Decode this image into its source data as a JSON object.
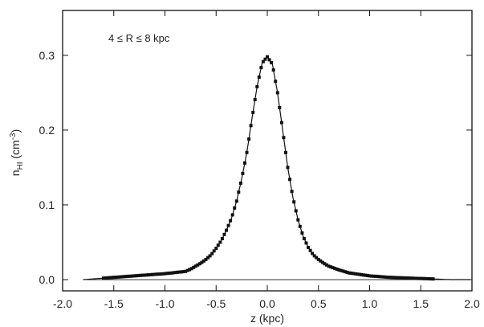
{
  "chart_data": {
    "type": "scatter",
    "title": "",
    "annotation": "4 ≤ R ≤ 8 kpc",
    "xlabel": "z (kpc)",
    "ylabel": "n_HI (cm^-3)",
    "ylabel_parts": {
      "main": "n",
      "sub": "HI",
      "unit_open": " (cm",
      "sup": "-3",
      "unit_close": ")"
    },
    "xlim": [
      -2.0,
      2.0
    ],
    "ylim": [
      -0.015,
      0.36
    ],
    "x_ticks": [
      -2.0,
      -1.5,
      -1.0,
      -0.5,
      0.0,
      0.5,
      1.0,
      1.5,
      2.0
    ],
    "x_tick_labels": [
      "-2.0",
      "-1.5",
      "-1.0",
      "-0.5",
      "0.0",
      "0.5",
      "1.0",
      "1.5",
      "2.0"
    ],
    "y_ticks": [
      0.0,
      0.1,
      0.2,
      0.3
    ],
    "y_tick_labels": [
      "0.0",
      "0.1",
      "0.2",
      "0.3"
    ],
    "grid": false,
    "legend": "none",
    "zero_line": true,
    "colors": {
      "marks": "#111111",
      "axes": "#111111"
    },
    "series": [
      {
        "curve_x": [
          -1.8,
          -1.6,
          -1.4,
          -1.2,
          -1.0,
          -0.8,
          -0.75,
          -0.7,
          -0.65,
          -0.6,
          -0.55,
          -0.5,
          -0.45,
          -0.4,
          -0.35,
          -0.3,
          -0.25,
          -0.2,
          -0.15,
          -0.1,
          -0.05,
          0.0,
          0.05,
          0.1,
          0.15,
          0.2,
          0.25,
          0.3,
          0.35,
          0.4,
          0.45,
          0.5,
          0.55,
          0.6,
          0.7,
          0.8,
          1.0,
          1.2,
          1.4,
          1.6,
          1.8
        ],
        "curve_y": [
          0.0,
          0.002,
          0.004,
          0.006,
          0.008,
          0.011,
          0.014,
          0.018,
          0.022,
          0.027,
          0.033,
          0.042,
          0.052,
          0.066,
          0.082,
          0.105,
          0.135,
          0.17,
          0.215,
          0.258,
          0.29,
          0.298,
          0.288,
          0.25,
          0.2,
          0.15,
          0.11,
          0.08,
          0.058,
          0.043,
          0.033,
          0.027,
          0.022,
          0.018,
          0.013,
          0.009,
          0.005,
          0.003,
          0.002,
          0.001,
          0.0
        ]
      }
    ],
    "marker_range": [
      -1.6,
      1.62
    ],
    "marker_step": 0.02
  }
}
